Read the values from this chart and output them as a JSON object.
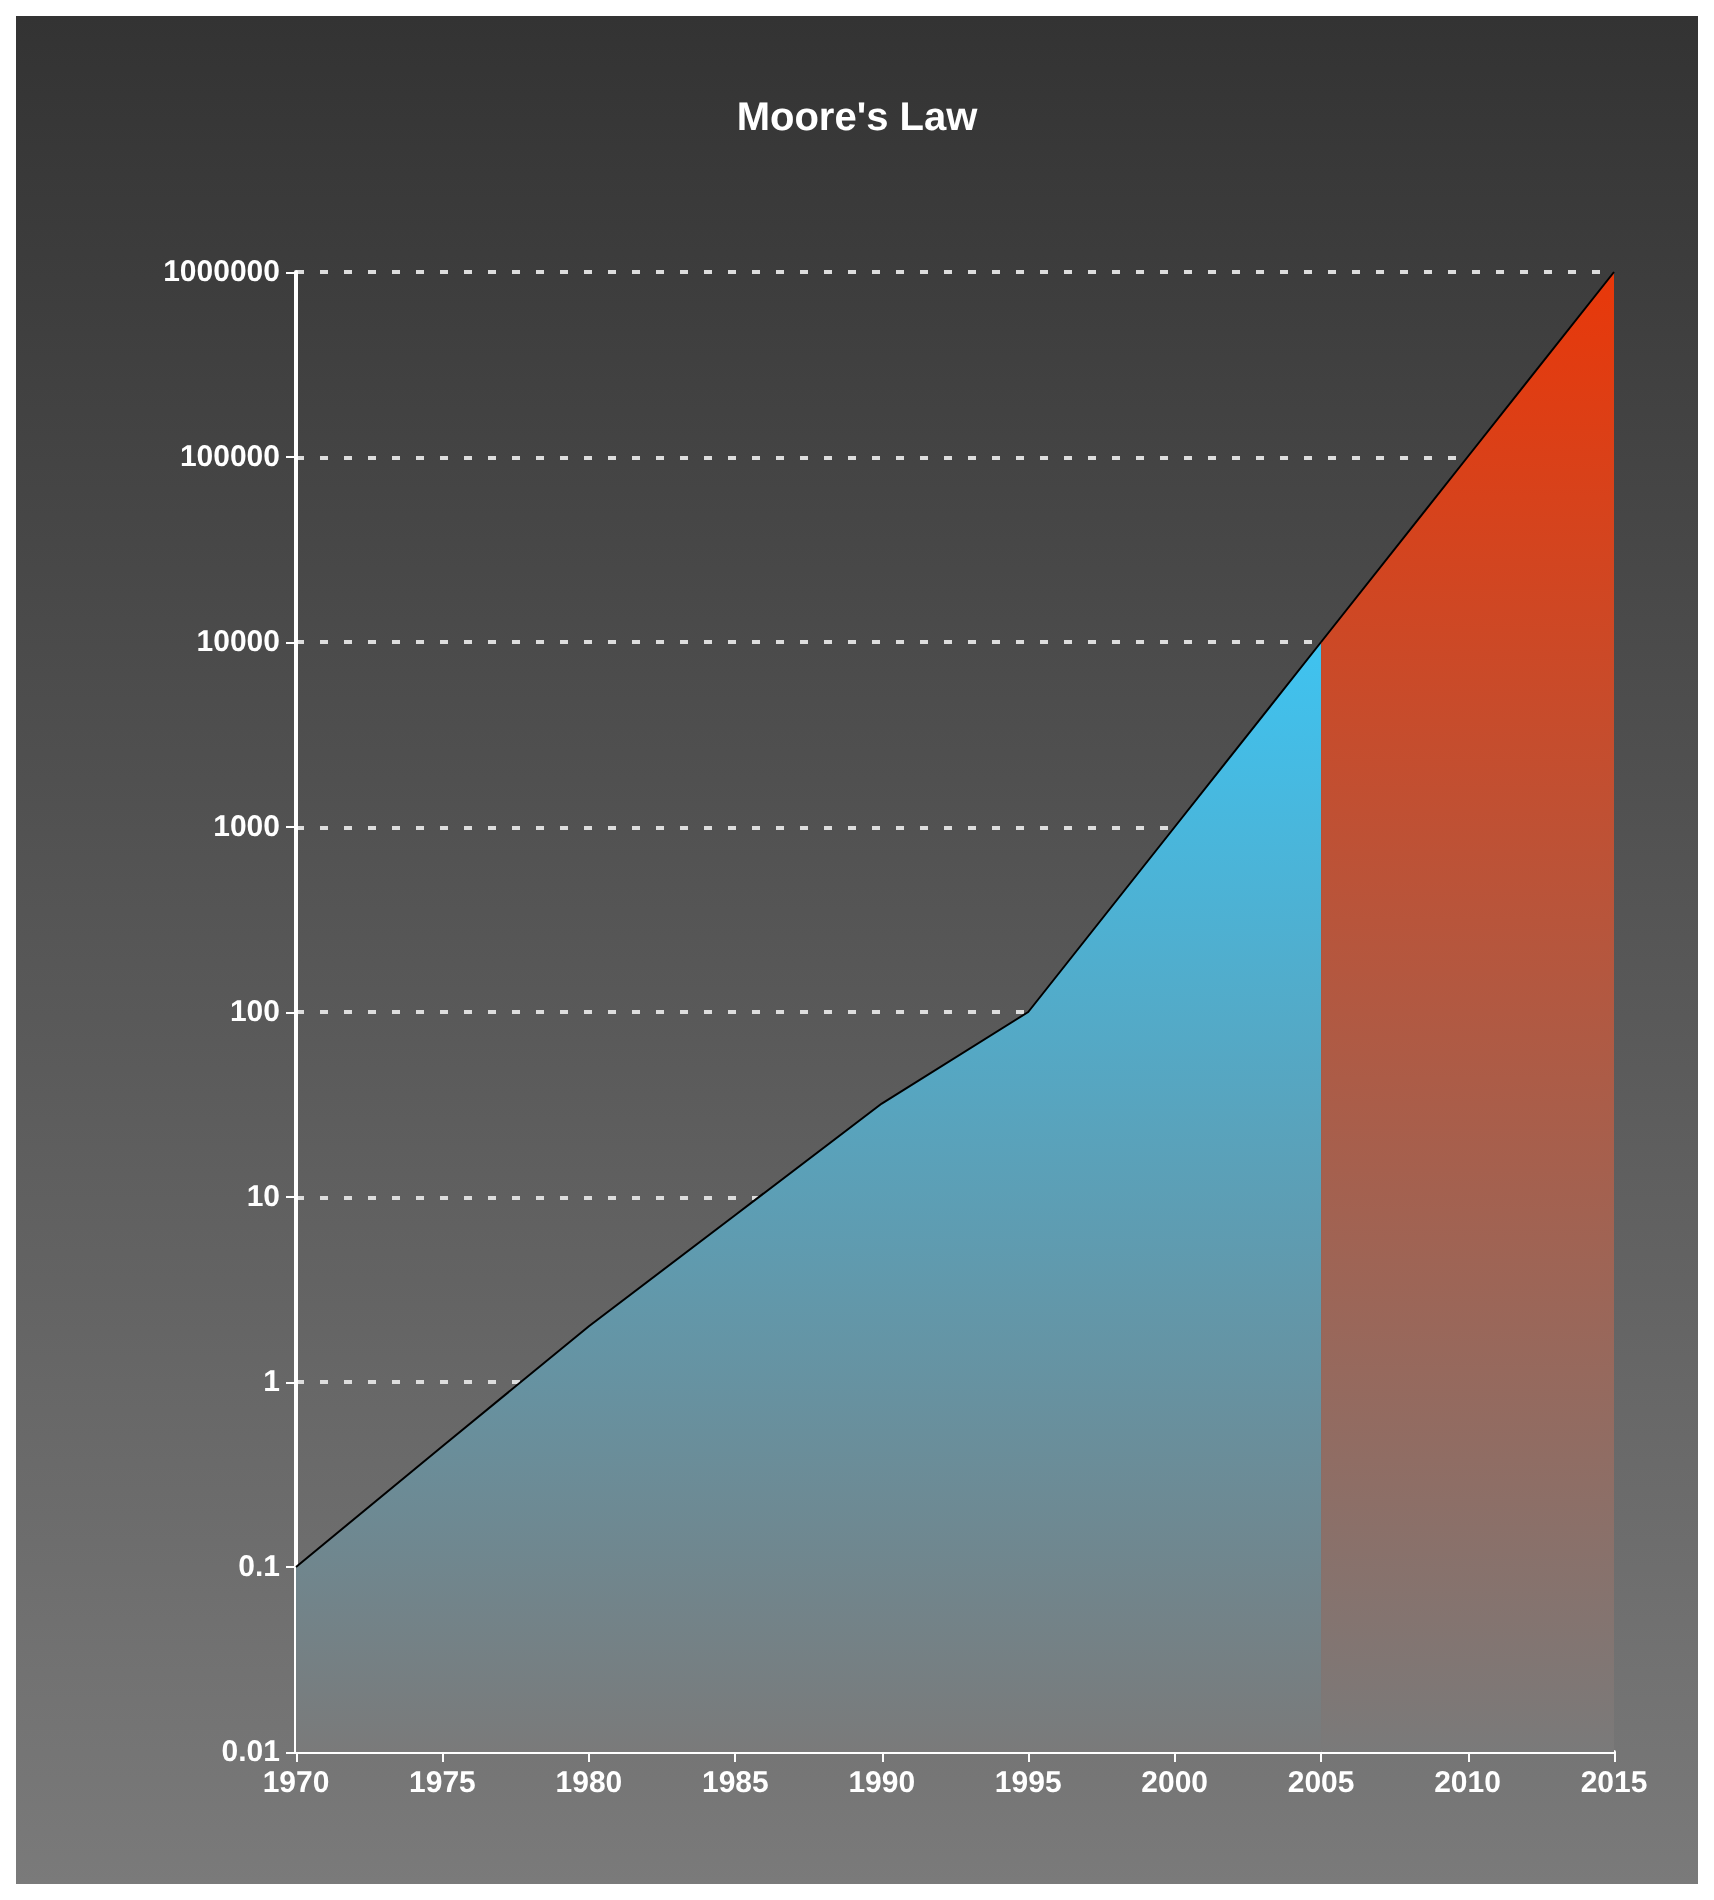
{
  "chart_data": {
    "type": "area",
    "title": "Moore's Law",
    "log": "y",
    "grid": "y",
    "xlim": [
      1970,
      2015
    ],
    "xticks": [
      1970,
      1975,
      1980,
      1985,
      1990,
      1995,
      2000,
      2005,
      2010,
      2015
    ],
    "ylim": [
      0.01,
      1000000
    ],
    "yticks": [
      {
        "value": 0.01,
        "label": "0.01"
      },
      {
        "value": 0.1,
        "label": "0.1"
      },
      {
        "value": 1,
        "label": "1"
      },
      {
        "value": 10,
        "label": "10"
      },
      {
        "value": 100,
        "label": "100"
      },
      {
        "value": 1000,
        "label": "1000"
      },
      {
        "value": 10000,
        "label": "10000"
      },
      {
        "value": 100000,
        "label": "100000"
      },
      {
        "value": 1000000,
        "label": "1000000"
      }
    ],
    "series": [
      {
        "color": "#3fc3f0",
        "x": [
          1970,
          1975,
          1980,
          1985,
          1990,
          1995,
          2000,
          2005
        ],
        "values": [
          0.1,
          0.45,
          2,
          8,
          32,
          100,
          1000,
          10000
        ]
      },
      {
        "color": "#e8380a",
        "x": [
          2005,
          2010,
          2015
        ],
        "values": [
          10000,
          100000,
          1000000
        ]
      }
    ]
  }
}
